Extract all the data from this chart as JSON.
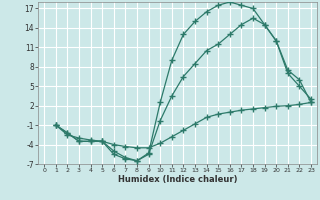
{
  "background_color": "#cce8e8",
  "grid_color": "#ffffff",
  "line_color": "#2d7a6a",
  "xlabel": "Humidex (Indice chaleur)",
  "xlim": [
    -0.5,
    23.5
  ],
  "ylim": [
    -7,
    18
  ],
  "yticks": [
    -7,
    -4,
    -1,
    2,
    5,
    8,
    11,
    14,
    17
  ],
  "xticks": [
    0,
    1,
    2,
    3,
    4,
    5,
    6,
    7,
    8,
    9,
    10,
    11,
    12,
    13,
    14,
    15,
    16,
    17,
    18,
    19,
    20,
    21,
    22,
    23
  ],
  "line1_x": [
    1,
    2,
    3,
    4,
    5,
    6,
    7,
    8,
    9,
    10,
    11,
    12,
    13,
    14,
    15,
    16,
    17,
    18,
    19,
    20,
    21,
    22,
    23
  ],
  "line1_y": [
    -1,
    -2.5,
    -3,
    -3.3,
    -3.5,
    -4,
    -4.3,
    -4.5,
    -4.5,
    -3.8,
    -2.8,
    -1.8,
    -0.8,
    0.2,
    0.7,
    1.0,
    1.3,
    1.5,
    1.7,
    1.9,
    2.0,
    2.2,
    2.5
  ],
  "line2_x": [
    1,
    2,
    3,
    4,
    5,
    6,
    7,
    8,
    9,
    10,
    11,
    12,
    13,
    14,
    15,
    16,
    17,
    18,
    19,
    20,
    21,
    22,
    23
  ],
  "line2_y": [
    -1,
    -2.2,
    -3.5,
    -3.5,
    -3.5,
    -5.5,
    -6.2,
    -6.5,
    -5.3,
    2.5,
    9,
    13,
    15,
    16.5,
    17.5,
    18,
    17.5,
    17,
    14.5,
    12,
    7,
    5,
    3
  ],
  "line3_x": [
    1,
    2,
    3,
    4,
    5,
    6,
    7,
    8,
    9,
    10,
    11,
    12,
    13,
    14,
    15,
    16,
    17,
    18,
    19,
    20,
    21,
    22,
    23
  ],
  "line3_y": [
    -1,
    -2.2,
    -3.5,
    -3.5,
    -3.5,
    -5.0,
    -6.0,
    -6.5,
    -5.5,
    -0.3,
    3.5,
    6.5,
    8.5,
    10.5,
    11.5,
    13,
    14.5,
    15.5,
    14.5,
    12,
    7.5,
    6,
    2.5
  ],
  "figwidth": 3.2,
  "figheight": 2.0,
  "dpi": 100
}
